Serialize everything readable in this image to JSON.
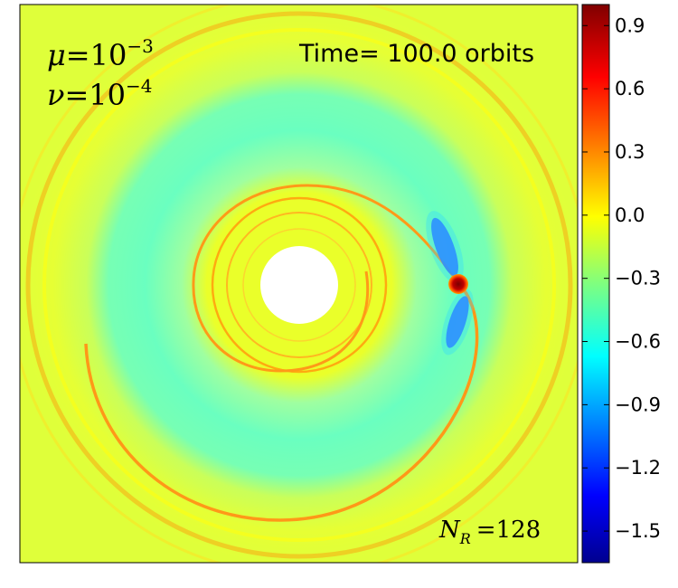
{
  "figure": {
    "annotations": {
      "mu_symbol": "μ",
      "mu_eq": "=10",
      "mu_exp": "−3",
      "nu_symbol": "ν",
      "nu_eq": "=10",
      "nu_exp": "−4",
      "time": "Time= 100.0 orbits",
      "nr_symbol": "N",
      "nr_sub": "R",
      "nr_eq": "=128"
    }
  },
  "chart_data": {
    "type": "heatmap",
    "title": "",
    "xlabel": "",
    "ylabel": "",
    "colormap": "jet",
    "colorbar": {
      "range": [
        -1.65,
        1.0
      ],
      "ticks": [
        0.9,
        0.6,
        0.3,
        0.0,
        -0.3,
        -0.6,
        -0.9,
        -1.2,
        -1.5
      ],
      "tick_labels": [
        "0.9",
        "0.6",
        "0.3",
        "0.0",
        "−0.3",
        "−0.6",
        "−0.9",
        "−1.2",
        "−1.5"
      ]
    },
    "features": {
      "background_value": 0.1,
      "inner_hole": "white disk at center",
      "planet_value": 1.0,
      "planet_location": "right of center",
      "spiral_wake_value": 0.25,
      "gap_trough_value": -0.5,
      "vortex_lobes_value": -1.2
    }
  }
}
